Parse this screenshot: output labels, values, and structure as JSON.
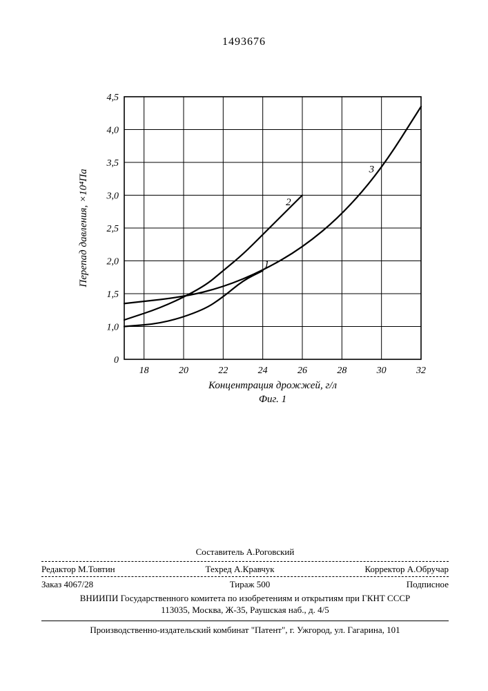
{
  "document_number": "1493676",
  "chart": {
    "type": "line",
    "y_label": "Перепад давления, ×10⁴Па",
    "x_label": "Концентрация дрожжей, г/л",
    "caption": "Фиг. 1",
    "xlim": [
      17,
      32
    ],
    "ylim": [
      0,
      4.5
    ],
    "x_ticks": [
      18,
      20,
      22,
      24,
      26,
      28,
      30,
      32
    ],
    "y_ticks": [
      0,
      1.0,
      1.5,
      2.0,
      2.5,
      3.0,
      3.5,
      4.0,
      4.5
    ],
    "y_tick_labels": [
      "0",
      "1,0",
      "1,5",
      "2,0",
      "2,5",
      "3,0",
      "3,5",
      "4,0",
      "4,5"
    ],
    "background_color": "#ffffff",
    "grid_color": "#000000",
    "axis_color": "#000000",
    "line_color": "#000000",
    "line_width": 2.2,
    "grid_width": 1,
    "tick_fontsize": 14,
    "label_fontsize": 15,
    "series": [
      {
        "name": "1",
        "label_pos": {
          "x": 24.2,
          "y": 1.9
        },
        "points": [
          {
            "x": 17,
            "y": 1.0
          },
          {
            "x": 19,
            "y": 1.05
          },
          {
            "x": 21,
            "y": 1.25
          },
          {
            "x": 22,
            "y": 1.45
          },
          {
            "x": 23,
            "y": 1.7
          },
          {
            "x": 24,
            "y": 1.85
          }
        ]
      },
      {
        "name": "2",
        "label_pos": {
          "x": 25.3,
          "y": 2.85
        },
        "points": [
          {
            "x": 17,
            "y": 1.1
          },
          {
            "x": 19,
            "y": 1.3
          },
          {
            "x": 21,
            "y": 1.6
          },
          {
            "x": 22,
            "y": 1.85
          },
          {
            "x": 23,
            "y": 2.1
          },
          {
            "x": 24,
            "y": 2.4
          },
          {
            "x": 25,
            "y": 2.7
          },
          {
            "x": 26,
            "y": 3.0
          }
        ]
      },
      {
        "name": "3",
        "label_pos": {
          "x": 29.5,
          "y": 3.35
        },
        "points": [
          {
            "x": 17,
            "y": 1.35
          },
          {
            "x": 20,
            "y": 1.45
          },
          {
            "x": 22,
            "y": 1.6
          },
          {
            "x": 24,
            "y": 1.85
          },
          {
            "x": 26,
            "y": 2.2
          },
          {
            "x": 28,
            "y": 2.7
          },
          {
            "x": 30,
            "y": 3.4
          },
          {
            "x": 32,
            "y": 4.35
          }
        ]
      }
    ]
  },
  "footer": {
    "compiler": "Составитель А.Роговский",
    "editor_label": "Редактор М.Товтин",
    "tech_label": "Техред А.Кравчук",
    "corrector_label": "Корректор А.Обручар",
    "order": "Заказ 4067/28",
    "circulation": "Тираж 500",
    "subscription": "Подписное",
    "org_line": "ВНИИПИ Государственного комитета по изобретениям и открытиям при ГКНТ СССР",
    "org_addr": "113035, Москва, Ж-35, Раушская наб., д. 4/5",
    "printer": "Производственно-издательский комбинат \"Патент\", г. Ужгород, ул. Гагарина, 101"
  }
}
